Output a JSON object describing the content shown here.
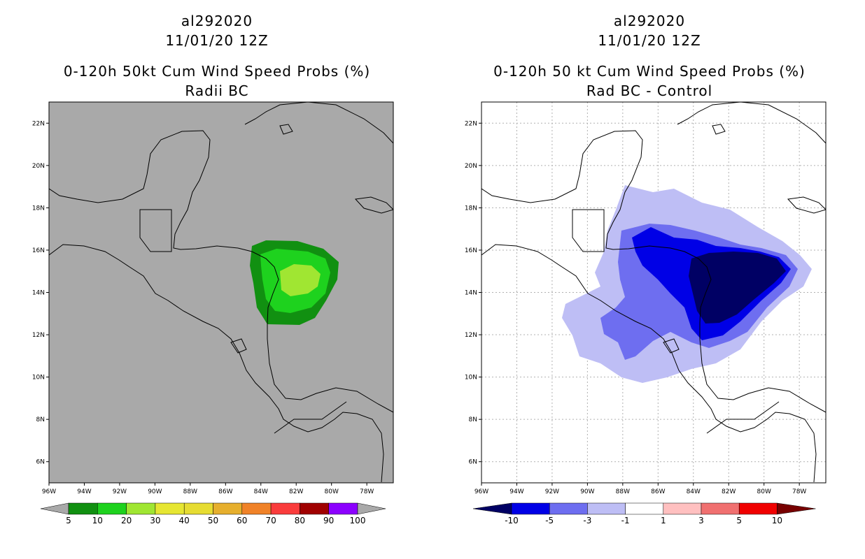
{
  "left_panel": {
    "title_storm": "al292020",
    "title_date": "11/01/20 12Z",
    "title_product": "0-120h 50kt Cum Wind Speed Probs (%)",
    "title_subtitle": "Radii BC",
    "background_color": "#a9a9a9",
    "lat_labels": [
      "22N",
      "20N",
      "18N",
      "16N",
      "14N",
      "12N",
      "10N",
      "8N",
      "6N"
    ],
    "lon_labels": [
      "96W",
      "94W",
      "92W",
      "90W",
      "88W",
      "86W",
      "84W",
      "82W",
      "80W",
      "78W"
    ],
    "colorbar": {
      "labels": [
        "5",
        "10",
        "20",
        "30",
        "40",
        "50",
        "60",
        "70",
        "80",
        "90",
        "100"
      ],
      "colors": [
        "#119011",
        "#1ed21e",
        "#a0e632",
        "#e6e632",
        "#e6dc32",
        "#e6af2d",
        "#f08228",
        "#fa3c3c",
        "#a00000",
        "#8c00ff"
      ],
      "end_color": "#a9a9a9"
    }
  },
  "right_panel": {
    "title_storm": "al292020",
    "title_date": "11/01/20 12Z",
    "title_product": "0-120h 50 kt Cum Wind Speed Probs (%)",
    "title_subtitle": "Rad BC - Control",
    "background_color": "#ffffff",
    "lat_labels": [
      "22N",
      "20N",
      "18N",
      "16N",
      "14N",
      "12N",
      "10N",
      "8N",
      "6N"
    ],
    "lon_labels": [
      "96W",
      "94W",
      "92W",
      "90W",
      "88W",
      "86W",
      "84W",
      "82W",
      "80W",
      "78W"
    ],
    "colorbar": {
      "labels": [
        "-10",
        "-5",
        "-3",
        "-1",
        "1",
        "3",
        "5",
        "10"
      ],
      "colors": [
        "#0000e6",
        "#6e6ef0",
        "#bebef5",
        "#ffffff",
        "#ffc0c0",
        "#f07070",
        "#f00000"
      ],
      "low_end_color": "#000064",
      "high_end_color": "#780000"
    }
  },
  "chart_data": [
    {
      "type": "heatmap",
      "title": "0-120h 50kt Cum Wind Speed Probs (%)",
      "subtitle": "Radii BC",
      "storm_id": "al292020",
      "valid_time": "11/01/20 12Z",
      "lon_range": [
        -96,
        -76.5
      ],
      "lat_range": [
        5,
        23
      ],
      "contour_levels": [
        5,
        10,
        20,
        30,
        40,
        50,
        60,
        70,
        80,
        90,
        100
      ],
      "max_probability_region": {
        "lon": -82.3,
        "lat": 14.7,
        "value_band": "20-30"
      }
    },
    {
      "type": "heatmap",
      "title": "0-120h 50 kt Cum Wind Speed Probs (%)",
      "subtitle": "Rad BC - Control",
      "storm_id": "al292020",
      "valid_time": "11/01/20 12Z",
      "lon_range": [
        -96,
        -76.5
      ],
      "lat_range": [
        5,
        23
      ],
      "contour_levels": [
        -10,
        -5,
        -3,
        -1,
        1,
        3,
        5,
        10
      ],
      "min_difference_region": {
        "lon": -82.5,
        "lat": 14.5,
        "value_band": "< -10"
      }
    }
  ]
}
